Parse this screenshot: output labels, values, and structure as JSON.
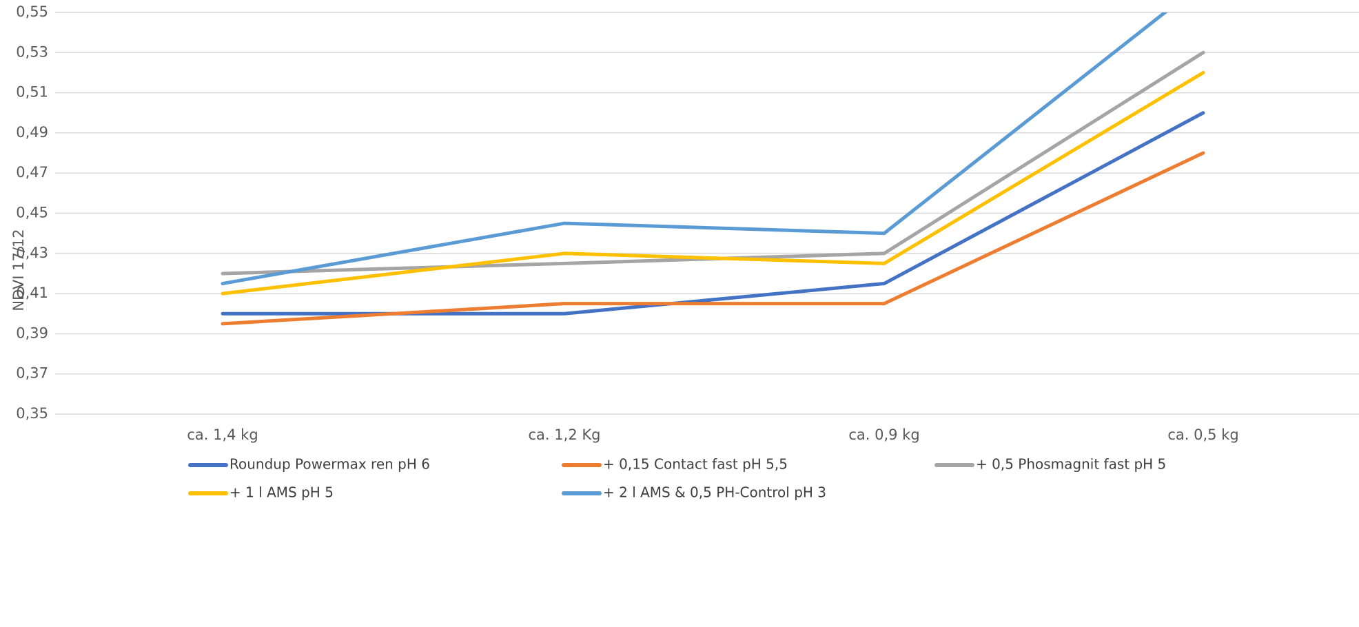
{
  "chart_data": {
    "type": "line",
    "title": "",
    "xlabel": "",
    "ylabel": "NDVI 17/12",
    "ylim": [
      0.35,
      0.55
    ],
    "yticks": [
      "0,35",
      "0,37",
      "0,39",
      "0,41",
      "0,43",
      "0,45",
      "0,47",
      "0,49",
      "0,51",
      "0,53",
      "0,55"
    ],
    "ytick_values": [
      0.35,
      0.37,
      0.39,
      0.41,
      0.43,
      0.45,
      0.47,
      0.49,
      0.51,
      0.53,
      0.55
    ],
    "grid": true,
    "legend_position": "bottom",
    "categories": [
      "ca. 1,4 kg",
      "ca. 1,2 Kg",
      "ca. 0,9 kg",
      "ca. 0,5 kg"
    ],
    "series": [
      {
        "name": "Roundup Powermax ren pH 6",
        "color": "#4472c4",
        "values": [
          0.4,
          0.4,
          0.415,
          0.5
        ]
      },
      {
        "name": "+ 0,15 Contact fast pH 5,5",
        "color": "#ed7d31",
        "values": [
          0.395,
          0.405,
          0.405,
          0.48
        ]
      },
      {
        "name": "+ 0,5 Phosmagnit fast pH 5",
        "color": "#a5a5a5",
        "values": [
          0.42,
          0.425,
          0.43,
          0.53
        ]
      },
      {
        "name": "+ 1 l AMS pH 5",
        "color": "#ffc000",
        "values": [
          0.41,
          0.43,
          0.425,
          0.52
        ]
      },
      {
        "name": "+ 2 l AMS & 0,5 PH-Control pH 3",
        "color": "#5b9bd5",
        "values": [
          0.415,
          0.445,
          0.44,
          0.565
        ]
      }
    ]
  }
}
